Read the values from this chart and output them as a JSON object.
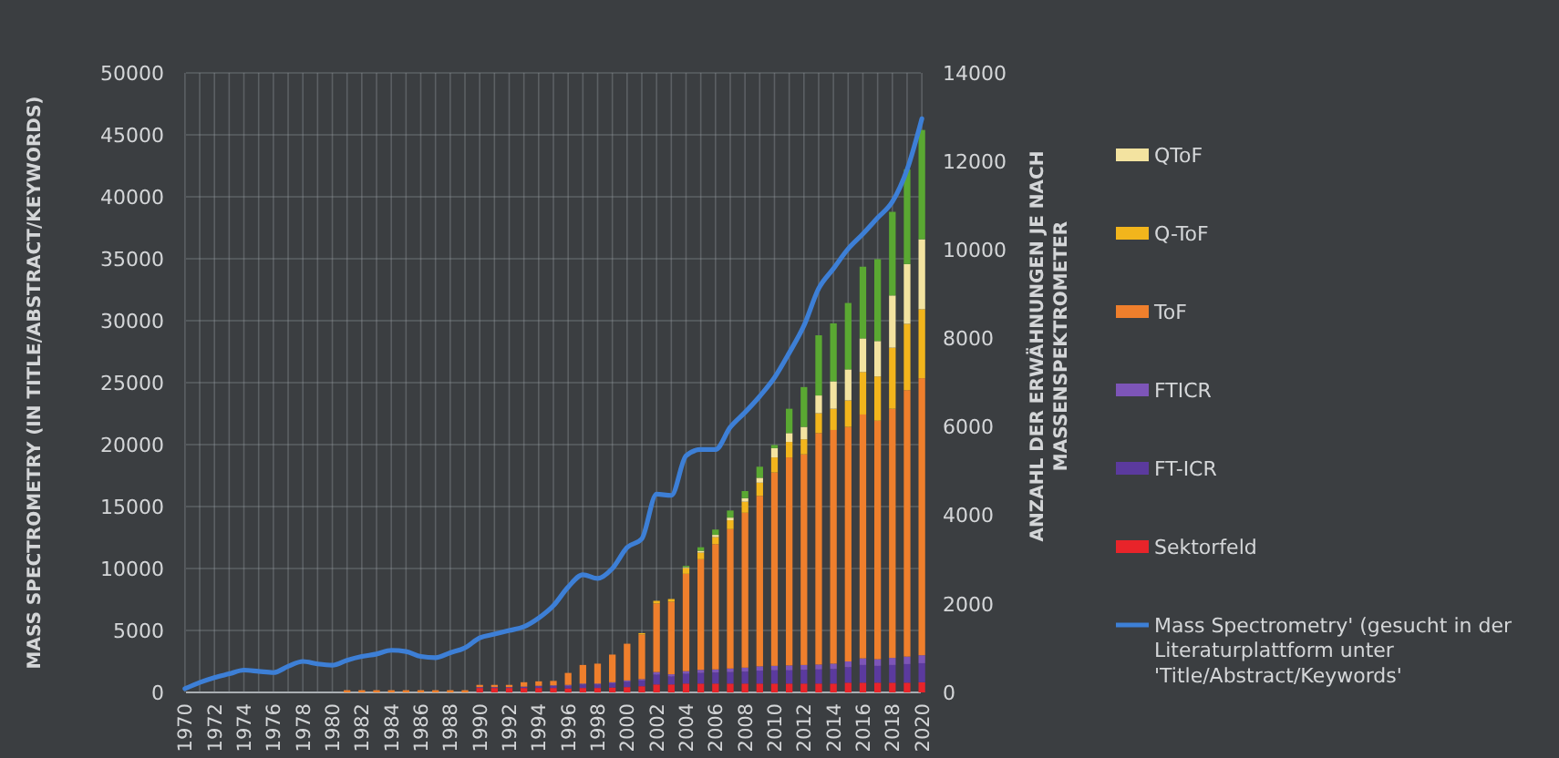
{
  "chart_data": {
    "type": "bar",
    "stacked": true,
    "xlabel": null,
    "ylabel": "MASS SPECTROMETRY (IN TITLE/ABSTRACT/KEYWORDS)",
    "y2label": "ANZAHL DER ERWÄHNUNGEN JE NACH MASSENSPEKTROMETER",
    "categories": [
      "1970",
      null,
      "1972",
      null,
      "1974",
      null,
      "1976",
      null,
      "1978",
      null,
      "1980",
      null,
      "1982",
      null,
      "1984",
      null,
      "1986",
      null,
      "1988",
      null,
      "1990",
      null,
      "1992",
      null,
      "1994",
      null,
      "1996",
      null,
      "1998",
      null,
      "2000",
      null,
      "2002",
      null,
      "2004",
      null,
      "2006",
      null,
      "2008",
      null,
      "2010",
      null,
      "2012",
      null,
      "2014",
      null,
      "2016",
      null,
      "2018",
      null,
      "2020"
    ],
    "ylim": [
      0,
      50000
    ],
    "yticks": [
      0,
      5000,
      10000,
      15000,
      20000,
      25000,
      30000,
      35000,
      40000,
      45000,
      50000
    ],
    "y2lim": [
      0,
      14000
    ],
    "y2ticks": [
      0,
      2000,
      4000,
      6000,
      8000,
      10000,
      12000,
      14000
    ],
    "grid": true,
    "legend": "right",
    "series": [
      {
        "name": "Sektorfeld",
        "type": "bar",
        "axis": "y2",
        "color": "#e8242a",
        "values": [
          0,
          0,
          0,
          0,
          0,
          0,
          0,
          0,
          0,
          0,
          0,
          null,
          null,
          null,
          null,
          null,
          null,
          null,
          null,
          null,
          100,
          100,
          100,
          100,
          100,
          100,
          90,
          100,
          100,
          110,
          120,
          140,
          180,
          180,
          200,
          200,
          200,
          200,
          200,
          200,
          200,
          200,
          200,
          200,
          200,
          220,
          220,
          220,
          220,
          220,
          230
        ]
      },
      {
        "name": "FT-ICR",
        "type": "bar",
        "axis": "y2",
        "color": "#5b3a9e",
        "values": [
          0,
          0,
          0,
          0,
          0,
          0,
          0,
          0,
          0,
          0,
          0,
          0,
          0,
          0,
          0,
          0,
          0,
          0,
          0,
          0,
          20,
          20,
          20,
          30,
          40,
          50,
          60,
          80,
          80,
          100,
          120,
          130,
          220,
          180,
          220,
          240,
          250,
          260,
          270,
          290,
          300,
          300,
          310,
          320,
          330,
          350,
          400,
          380,
          400,
          420,
          430
        ]
      },
      {
        "name": "FTICR",
        "type": "bar",
        "axis": "y2",
        "color": "#7d55b8",
        "values": [
          0,
          0,
          0,
          0,
          0,
          0,
          0,
          0,
          0,
          0,
          0,
          0,
          0,
          0,
          0,
          0,
          0,
          0,
          0,
          0,
          0,
          0,
          0,
          0,
          10,
          10,
          20,
          20,
          20,
          20,
          30,
          30,
          60,
          50,
          60,
          70,
          70,
          80,
          90,
          100,
          100,
          110,
          110,
          110,
          120,
          130,
          150,
          150,
          160,
          170,
          180
        ]
      },
      {
        "name": "ToF",
        "type": "bar",
        "axis": "y2",
        "color": "#ef7f2c",
        "values": [
          0,
          0,
          0,
          0,
          0,
          0,
          0,
          0,
          0,
          0,
          0,
          50,
          50,
          50,
          50,
          50,
          50,
          50,
          50,
          50,
          50,
          50,
          50,
          100,
          100,
          100,
          270,
          420,
          450,
          625,
          830,
          1010,
          1550,
          1640,
          2200,
          2500,
          2830,
          3150,
          3500,
          3850,
          4370,
          4700,
          4760,
          5230,
          5280,
          5300,
          5510,
          5390,
          5630,
          6020,
          6260
        ]
      },
      {
        "name": "Q-ToF",
        "type": "bar",
        "axis": "y2",
        "color": "#f2b51c",
        "values": [
          0,
          0,
          0,
          0,
          0,
          0,
          0,
          0,
          0,
          0,
          0,
          0,
          0,
          0,
          0,
          0,
          0,
          0,
          0,
          0,
          0,
          0,
          0,
          0,
          0,
          0,
          0,
          0,
          0,
          0,
          0,
          30,
          60,
          60,
          130,
          150,
          160,
          200,
          250,
          300,
          340,
          350,
          340,
          450,
          480,
          600,
          960,
          1000,
          1380,
          1500,
          1560
        ]
      },
      {
        "name": "QToF",
        "type": "bar",
        "axis": "y2",
        "color": "#f3e3a0",
        "values": [
          0,
          0,
          0,
          0,
          0,
          0,
          0,
          0,
          0,
          0,
          0,
          0,
          0,
          0,
          0,
          0,
          0,
          0,
          0,
          0,
          0,
          0,
          0,
          0,
          0,
          0,
          0,
          0,
          0,
          0,
          0,
          0,
          0,
          0,
          20,
          40,
          50,
          60,
          80,
          110,
          210,
          200,
          280,
          400,
          620,
          700,
          760,
          800,
          1180,
          1350,
          1580
        ]
      },
      {
        "type": "bar",
        "axis": "y2",
        "color": "#5aa832",
        "values": [
          0,
          0,
          0,
          0,
          0,
          0,
          0,
          0,
          0,
          0,
          0,
          0,
          0,
          0,
          0,
          0,
          0,
          0,
          0,
          0,
          0,
          0,
          0,
          0,
          0,
          0,
          0,
          0,
          0,
          0,
          0,
          0,
          0,
          0,
          30,
          80,
          120,
          160,
          160,
          250,
          70,
          550,
          900,
          1360,
          1310,
          1500,
          1620,
          1850,
          1890,
          2140,
          2470
        ]
      },
      {
        "name": "Mass Spectrometry' (gesucht in der Literaturplattform unter 'Title/Abstract/Keywords'",
        "type": "line",
        "axis": "y",
        "color": "#3d7fd6",
        "values": [
          300,
          800,
          1200,
          1500,
          1800,
          1700,
          1600,
          2100,
          2500,
          2300,
          2200,
          2600,
          2900,
          3100,
          3400,
          3300,
          2900,
          2800,
          3200,
          3600,
          4400,
          4700,
          5000,
          5300,
          6000,
          7000,
          8500,
          9500,
          9200,
          10000,
          11700,
          12400,
          16000,
          15900,
          19100,
          19600,
          19600,
          21400,
          22600,
          23900,
          25400,
          27400,
          29600,
          32600,
          34200,
          35800,
          37000,
          38300,
          39600,
          42200,
          46300
        ]
      }
    ]
  }
}
